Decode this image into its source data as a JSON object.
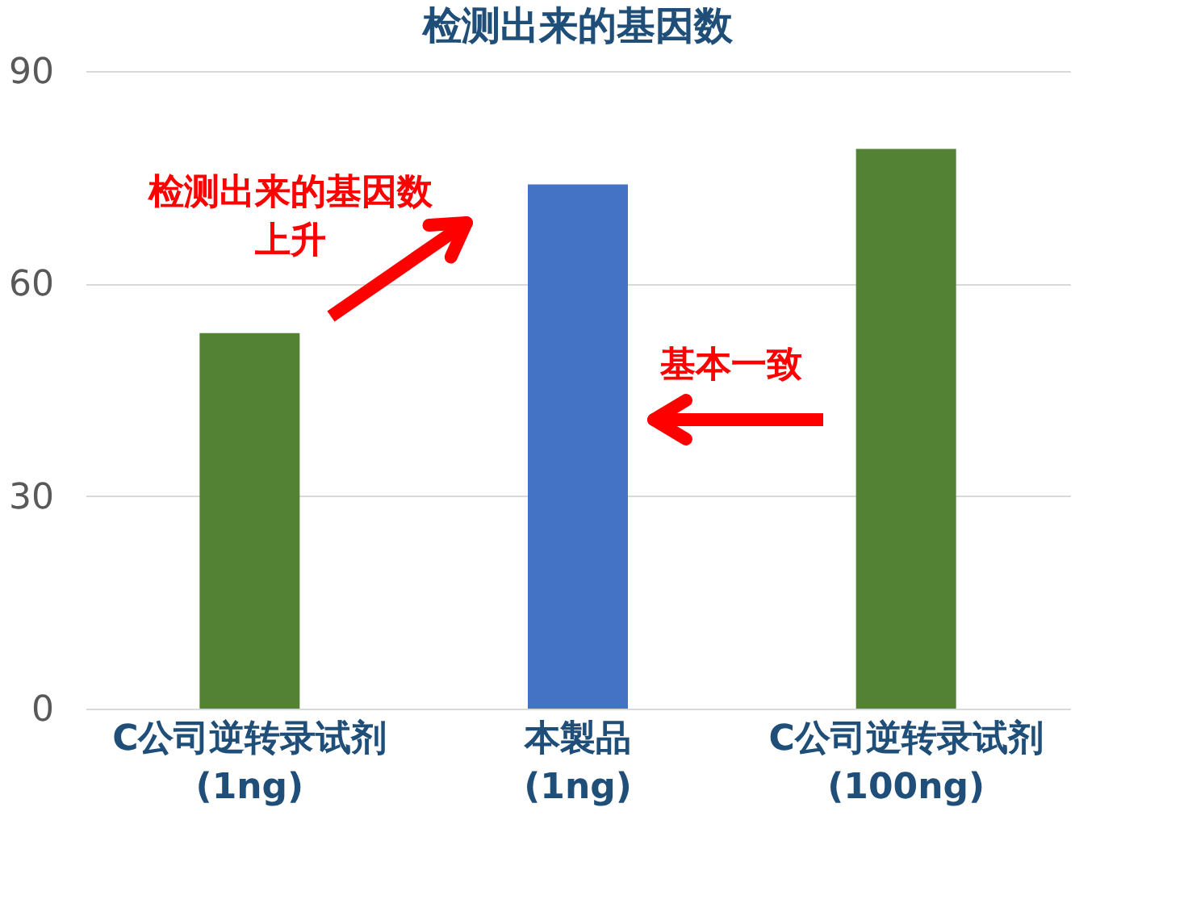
{
  "chart_data": {
    "type": "bar",
    "title": "检测出来的基因数",
    "categories": [
      "C公司逆转录试剂\n(1ng)",
      "本製品\n(1ng)",
      "C公司逆转录试剂\n(100ng)"
    ],
    "values": [
      53,
      74,
      79
    ],
    "colors": [
      "#548235",
      "#4472c4",
      "#548235"
    ],
    "ylim": [
      0,
      90
    ],
    "yticks": [
      0,
      30,
      60,
      90
    ],
    "grid": "y",
    "annotations": [
      "检测出来的基因数上升",
      "基本一致"
    ]
  }
}
